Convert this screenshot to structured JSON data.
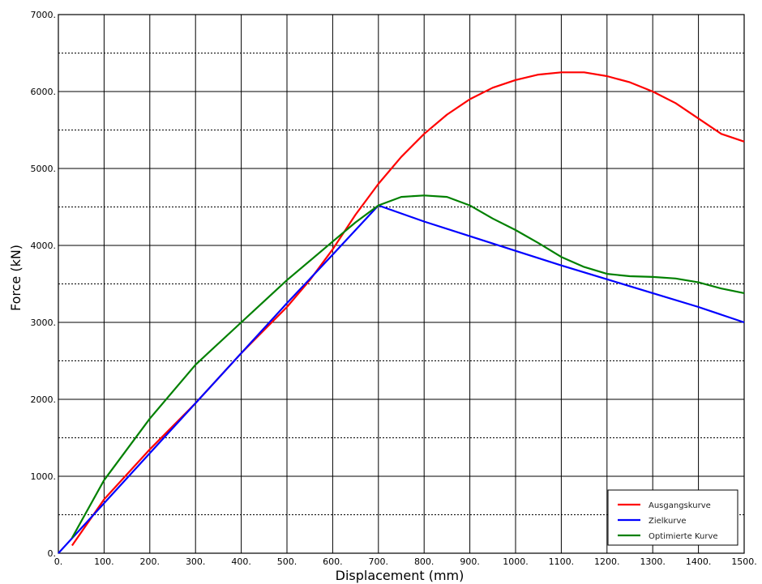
{
  "chart_data": {
    "type": "line",
    "title": "",
    "xlabel": "Displacement (mm)",
    "ylabel": "Force (kN)",
    "xlim": [
      0,
      1500
    ],
    "ylim": [
      0,
      7000
    ],
    "x_ticks": [
      0,
      100,
      200,
      300,
      400,
      500,
      600,
      700,
      800,
      900,
      1000,
      1100,
      1200,
      1300,
      1400,
      1500
    ],
    "x_tick_labels": [
      "0.",
      "100.",
      "200.",
      "300.",
      "400.",
      "500.",
      "600.",
      "700.",
      "800.",
      "900.",
      "1000.",
      "1100.",
      "1200.",
      "1300.",
      "1400.",
      "1500."
    ],
    "y_ticks": [
      0,
      1000,
      2000,
      3000,
      4000,
      5000,
      6000,
      7000
    ],
    "y_tick_labels": [
      "0.",
      "1000.",
      "2000.",
      "3000.",
      "4000.",
      "5000.",
      "6000.",
      "7000."
    ],
    "grid": true,
    "minor_grid_y": [
      500,
      1500,
      2500,
      3500,
      4500,
      5500,
      6500
    ],
    "legend": {
      "position": "bottom-right"
    },
    "series": [
      {
        "name": "Ausgangskurve",
        "color": "#ff0000",
        "points": [
          [
            30,
            100
          ],
          [
            100,
            700
          ],
          [
            200,
            1350
          ],
          [
            300,
            1950
          ],
          [
            400,
            2600
          ],
          [
            500,
            3200
          ],
          [
            550,
            3550
          ],
          [
            600,
            3950
          ],
          [
            650,
            4400
          ],
          [
            700,
            4800
          ],
          [
            750,
            5150
          ],
          [
            800,
            5450
          ],
          [
            850,
            5700
          ],
          [
            900,
            5900
          ],
          [
            950,
            6050
          ],
          [
            1000,
            6150
          ],
          [
            1050,
            6220
          ],
          [
            1100,
            6250
          ],
          [
            1150,
            6250
          ],
          [
            1200,
            6200
          ],
          [
            1250,
            6120
          ],
          [
            1300,
            6000
          ],
          [
            1350,
            5850
          ],
          [
            1400,
            5650
          ],
          [
            1450,
            5450
          ],
          [
            1500,
            5350
          ]
        ]
      },
      {
        "name": "Zielkurve",
        "color": "#0000ff",
        "points": [
          [
            0,
            0
          ],
          [
            100,
            650
          ],
          [
            200,
            1300
          ],
          [
            300,
            1950
          ],
          [
            400,
            2600
          ],
          [
            500,
            3250
          ],
          [
            600,
            3880
          ],
          [
            700,
            4520
          ],
          [
            800,
            4310
          ],
          [
            900,
            4120
          ],
          [
            1000,
            3930
          ],
          [
            1100,
            3740
          ],
          [
            1200,
            3560
          ],
          [
            1300,
            3380
          ],
          [
            1400,
            3200
          ],
          [
            1500,
            3000
          ]
        ]
      },
      {
        "name": "Optimierte Kurve",
        "color": "#008000",
        "points": [
          [
            30,
            200
          ],
          [
            100,
            950
          ],
          [
            200,
            1750
          ],
          [
            300,
            2450
          ],
          [
            400,
            3000
          ],
          [
            500,
            3550
          ],
          [
            600,
            4050
          ],
          [
            650,
            4300
          ],
          [
            700,
            4520
          ],
          [
            750,
            4630
          ],
          [
            800,
            4650
          ],
          [
            850,
            4630
          ],
          [
            900,
            4520
          ],
          [
            950,
            4350
          ],
          [
            1000,
            4200
          ],
          [
            1050,
            4030
          ],
          [
            1100,
            3850
          ],
          [
            1150,
            3720
          ],
          [
            1200,
            3630
          ],
          [
            1250,
            3600
          ],
          [
            1300,
            3590
          ],
          [
            1350,
            3570
          ],
          [
            1400,
            3520
          ],
          [
            1450,
            3440
          ],
          [
            1500,
            3380
          ]
        ]
      }
    ]
  }
}
